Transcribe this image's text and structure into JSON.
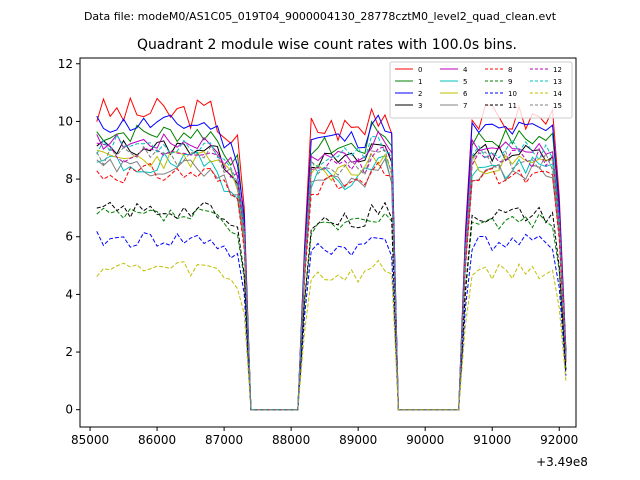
{
  "chart_data": {
    "type": "line",
    "suptitle": "Data file: modeM0/AS1C05_019T04_9000004130_28778cztM0_level2_quad_clean.evt",
    "title": "Quadrant 2 module wise count rates with 100.0s bins.",
    "xlabel": "",
    "ylabel": "",
    "offset_text": "+3.49e8",
    "xlim": [
      84850,
      92250
    ],
    "ylim": [
      -0.6,
      12.2
    ],
    "x_ticks": [
      85000,
      86000,
      87000,
      88000,
      89000,
      90000,
      91000,
      92000
    ],
    "y_ticks": [
      0,
      2,
      4,
      6,
      8,
      10,
      12
    ],
    "x_start": 85100,
    "x_step": 100,
    "segments": [
      {
        "from": 85100,
        "to": 87200,
        "gap_after": [
          87300,
          87400
        ]
      },
      {
        "from": 88200,
        "to": 89500,
        "gap_after": [
          89600
        ]
      },
      {
        "from": 90600,
        "to": 92000,
        "gap_after": [
          92100
        ]
      }
    ],
    "zero_ranges": [
      [
        87400,
        88100
      ],
      [
        89600,
        90500
      ]
    ],
    "legend_position": "upper-right",
    "series": [
      {
        "name": "0",
        "color": "#ff0000",
        "dash": false,
        "base": 10.3,
        "noise": 0.55,
        "seed": 3
      },
      {
        "name": "1",
        "color": "#008000",
        "dash": false,
        "base": 9.6,
        "noise": 0.35,
        "seed": 7
      },
      {
        "name": "2",
        "color": "#0000ff",
        "dash": false,
        "base": 9.9,
        "noise": 0.35,
        "seed": 11
      },
      {
        "name": "3",
        "color": "#000000",
        "dash": false,
        "base": 9.1,
        "noise": 0.3,
        "seed": 13
      },
      {
        "name": "4",
        "color": "#bf00bf",
        "dash": false,
        "base": 9.3,
        "noise": 0.3,
        "seed": 17
      },
      {
        "name": "5",
        "color": "#00bfbf",
        "dash": false,
        "base": 8.5,
        "noise": 0.45,
        "seed": 19
      },
      {
        "name": "6",
        "color": "#bfbf00",
        "dash": false,
        "base": 8.7,
        "noise": 0.35,
        "seed": 23
      },
      {
        "name": "7",
        "color": "#808080",
        "dash": false,
        "base": 8.4,
        "noise": 0.3,
        "seed": 29
      },
      {
        "name": "8",
        "color": "#ff0000",
        "dash": true,
        "base": 8.2,
        "noise": 0.35,
        "seed": 31
      },
      {
        "name": "9",
        "color": "#008000",
        "dash": true,
        "base": 6.7,
        "noise": 0.3,
        "seed": 37
      },
      {
        "name": "10",
        "color": "#0000ff",
        "dash": true,
        "base": 5.9,
        "noise": 0.3,
        "seed": 41
      },
      {
        "name": "11",
        "color": "#000000",
        "dash": true,
        "base": 6.9,
        "noise": 0.3,
        "seed": 43
      },
      {
        "name": "12",
        "color": "#bf00bf",
        "dash": true,
        "base": 8.9,
        "noise": 0.35,
        "seed": 47
      },
      {
        "name": "13",
        "color": "#00bfbf",
        "dash": true,
        "base": 9.2,
        "noise": 0.35,
        "seed": 53
      },
      {
        "name": "14",
        "color": "#bfbf00",
        "dash": true,
        "base": 4.9,
        "noise": 0.3,
        "seed": 59
      },
      {
        "name": "15",
        "color": "#808080",
        "dash": true,
        "base": 8.8,
        "noise": 0.35,
        "seed": 61
      }
    ]
  }
}
